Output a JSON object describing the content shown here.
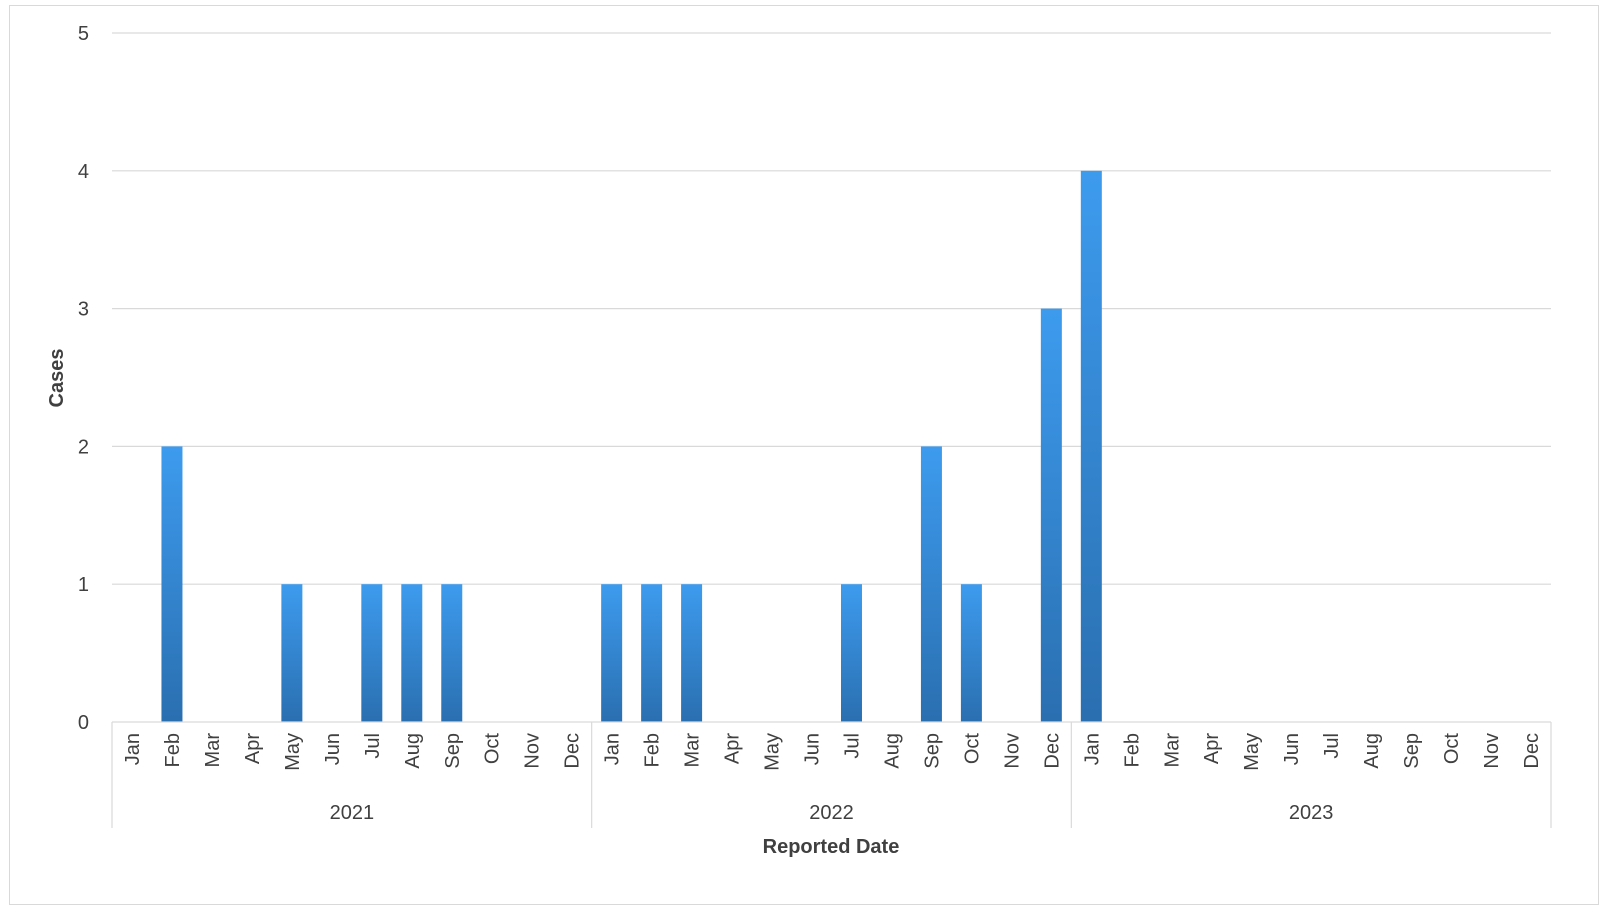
{
  "chart_data": {
    "type": "bar",
    "title": "",
    "xlabel": "Reported Date",
    "ylabel": "Cases",
    "ylim": [
      0,
      5
    ],
    "yticks": [
      0,
      1,
      2,
      3,
      4,
      5
    ],
    "grid": true,
    "legend": "none",
    "bar_color_top": "#3d9bee",
    "bar_color_bottom": "#2a6fb0",
    "groups": [
      {
        "label": "2021",
        "categories": [
          "Jan",
          "Feb",
          "Mar",
          "Apr",
          "May",
          "Jun",
          "Jul",
          "Aug",
          "Sep",
          "Oct",
          "Nov",
          "Dec"
        ],
        "values": [
          0,
          2,
          0,
          0,
          1,
          0,
          1,
          1,
          1,
          0,
          0,
          0
        ]
      },
      {
        "label": "2022",
        "categories": [
          "Jan",
          "Feb",
          "Mar",
          "Apr",
          "May",
          "Jun",
          "Jul",
          "Aug",
          "Sep",
          "Oct",
          "Nov",
          "Dec"
        ],
        "values": [
          1,
          1,
          1,
          0,
          0,
          0,
          1,
          0,
          2,
          1,
          0,
          3
        ]
      },
      {
        "label": "2023",
        "categories": [
          "Jan",
          "Feb",
          "Mar",
          "Apr",
          "May",
          "Jun",
          "Jul",
          "Aug",
          "Sep",
          "Oct",
          "Nov",
          "Dec"
        ],
        "values": [
          4,
          0,
          0,
          0,
          0,
          0,
          0,
          0,
          0,
          0,
          0,
          0
        ]
      }
    ]
  }
}
